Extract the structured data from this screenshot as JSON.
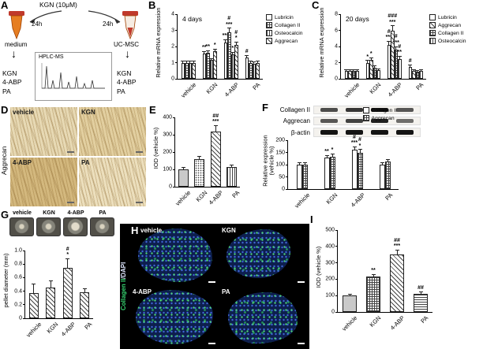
{
  "figure": {
    "colors": {
      "collagen_green": "#35d06e",
      "dapi_blue": "#2a3f8f",
      "tube_orange": "#e67e22"
    },
    "icons": {
      "down_arrow": "↓"
    },
    "panels": {
      "A": {
        "label": "A",
        "kgn": "KGN (10μM)",
        "time_left": "24h",
        "time_right": "24h",
        "medium": "medium",
        "ucmsc": "UC-MSC",
        "hplc": "HPLC-MS",
        "left_products": [
          "KGN",
          "4-ABP",
          "PA"
        ],
        "right_products": [
          "KGN",
          "4-ABP",
          "PA"
        ]
      },
      "B": {
        "label": "B"
      },
      "C": {
        "label": "C"
      },
      "D": {
        "label": "D",
        "side_label": "Aggrecan",
        "images": [
          "vehicle",
          "KGN",
          "4-ABP",
          "PA"
        ]
      },
      "E": {
        "label": "E"
      },
      "F": {
        "label": "F",
        "blot_rows": [
          "Collagen II",
          "Aggrecan",
          "β-actin"
        ]
      },
      "G": {
        "label": "G",
        "photo_labels": [
          "vehicle",
          "KGN",
          "4-ABP",
          "PA"
        ]
      },
      "H": {
        "label": "H",
        "side_label_green": "Collagen II",
        "side_label_white": "/DAPI",
        "images": [
          "vehicle",
          "KGN",
          "4-ABP",
          "PA"
        ]
      },
      "I": {
        "label": "I"
      }
    }
  },
  "chart_data": [
    {
      "id": "B",
      "panel": "B",
      "type": "bar",
      "title": "4 days",
      "ylabel": "Relative mRNA expression",
      "ylim": [
        0,
        4
      ],
      "yticks": [
        0,
        1,
        2,
        3,
        4
      ],
      "categories": [
        "vehicle",
        "KGN",
        "4-ABP",
        "PA"
      ],
      "series": [
        {
          "name": "Lubricin",
          "pattern": "plain",
          "values": [
            1.0,
            1.55,
            2.25,
            1.3
          ],
          "errors": [
            0.06,
            0.12,
            0.15,
            0.1
          ],
          "sig": [
            "",
            "**",
            "***",
            "#"
          ]
        },
        {
          "name": "Collagen II",
          "pattern": "cross",
          "values": [
            1.0,
            1.6,
            2.9,
            1.0
          ],
          "errors": [
            0.06,
            0.1,
            0.2,
            0.08
          ],
          "sig": [
            "",
            "**",
            "#\n***",
            ""
          ]
        },
        {
          "name": "Osteocalcin",
          "pattern": "vlines",
          "values": [
            1.0,
            1.15,
            1.5,
            0.95
          ],
          "errors": [
            0.05,
            0.08,
            0.1,
            0.06
          ],
          "sig": [
            "",
            "",
            "*",
            ""
          ]
        },
        {
          "name": "Aggrecan",
          "pattern": "diag",
          "values": [
            1.0,
            1.7,
            2.1,
            1.0
          ],
          "errors": [
            0.06,
            0.12,
            0.15,
            0.08
          ],
          "sig": [
            "",
            "*",
            "#\n*",
            ""
          ]
        }
      ]
    },
    {
      "id": "C",
      "panel": "C",
      "type": "bar",
      "title": "20 days",
      "ylabel": "Relative mRNA expression",
      "ylim": [
        0,
        8
      ],
      "yticks": [
        0,
        2,
        4,
        6,
        8
      ],
      "categories": [
        "vehicle",
        "KGN",
        "4-ABP",
        "PA"
      ],
      "series": [
        {
          "name": "Lubricin",
          "pattern": "plain",
          "values": [
            1.0,
            2.0,
            4.2,
            1.5
          ],
          "errors": [
            0.1,
            0.2,
            0.4,
            0.15
          ],
          "sig": [
            "",
            "*",
            "#\n***",
            "#"
          ]
        },
        {
          "name": "Aggrecan",
          "pattern": "diag",
          "values": [
            1.0,
            2.3,
            6.0,
            1.0
          ],
          "errors": [
            0.1,
            0.25,
            0.5,
            0.1
          ],
          "sig": [
            "",
            "*",
            "###\n***",
            ""
          ]
        },
        {
          "name": "Collagen II",
          "pattern": "cross",
          "values": [
            1.0,
            1.4,
            3.6,
            0.9
          ],
          "errors": [
            0.1,
            0.15,
            0.35,
            0.1
          ],
          "sig": [
            "",
            "",
            "#\n***",
            ""
          ]
        },
        {
          "name": "Osteocalcin",
          "pattern": "vlines",
          "values": [
            1.0,
            1.1,
            2.4,
            1.0
          ],
          "errors": [
            0.1,
            0.1,
            0.3,
            0.1
          ],
          "sig": [
            "",
            "",
            "#\n**",
            ""
          ]
        }
      ]
    },
    {
      "id": "E",
      "panel": "E",
      "type": "bar",
      "ylabel": "IOD (vehicle %)",
      "ylim": [
        0,
        400
      ],
      "yticks": [
        0,
        100,
        200,
        300,
        400
      ],
      "categories": [
        "vehicle",
        "KGN",
        "4-ABP",
        "PA"
      ],
      "values": [
        100,
        160,
        320,
        115
      ],
      "errors": [
        8,
        15,
        30,
        10
      ],
      "sig": [
        "",
        "",
        "##\n***",
        ""
      ],
      "bar_patterns": [
        "gray",
        "dots",
        "diag",
        "vlines"
      ]
    },
    {
      "id": "F",
      "panel": "F",
      "type": "bar",
      "legend_pos": "abs",
      "ylabel": "Relative expression (vehicle %)",
      "ylim": [
        0,
        200
      ],
      "yticks": [
        0,
        50,
        100,
        150,
        200
      ],
      "categories": [
        "vehicle",
        "KGN",
        "4-ABP",
        "PA"
      ],
      "series": [
        {
          "name": "Collagen II",
          "pattern": "plain",
          "values": [
            100,
            128,
            160,
            100
          ],
          "errors": [
            5,
            8,
            12,
            6
          ],
          "sig": [
            "",
            "**",
            "#\n***",
            ""
          ]
        },
        {
          "name": "Aggrecan",
          "pattern": "cross",
          "values": [
            100,
            133,
            150,
            112
          ],
          "errors": [
            5,
            8,
            10,
            8
          ],
          "sig": [
            "",
            "*",
            "#\n*",
            ""
          ]
        }
      ]
    },
    {
      "id": "G",
      "panel": "G",
      "type": "bar",
      "ylabel": "pellet diameter (mm)",
      "ylim": [
        0,
        1.0
      ],
      "yticks": [
        "0",
        "0.2",
        "0.4",
        "0.6",
        "0.8",
        "1.0"
      ],
      "categories": [
        "vehicle",
        "KGN",
        "4-ABP",
        "PA"
      ],
      "values": [
        0.37,
        0.45,
        0.75,
        0.38
      ],
      "errors": [
        0.13,
        0.1,
        0.12,
        0.05
      ],
      "sig": [
        "",
        "",
        "#\n*",
        ""
      ],
      "bar_patterns": [
        "diag",
        "diag",
        "diag",
        "diag"
      ]
    },
    {
      "id": "I",
      "panel": "I",
      "type": "bar",
      "ylabel": "IOD (vehicle %)",
      "ylim": [
        0,
        500
      ],
      "yticks": [
        0,
        100,
        200,
        300,
        400,
        500
      ],
      "categories": [
        "vehicle",
        "KGN",
        "4-ABP",
        "PA"
      ],
      "values": [
        100,
        215,
        350,
        110
      ],
      "errors": [
        8,
        12,
        25,
        10
      ],
      "sig": [
        "",
        "**",
        "##\n***",
        "##"
      ],
      "bar_patterns": [
        "gray",
        "cross",
        "diag",
        "hlines"
      ]
    }
  ]
}
